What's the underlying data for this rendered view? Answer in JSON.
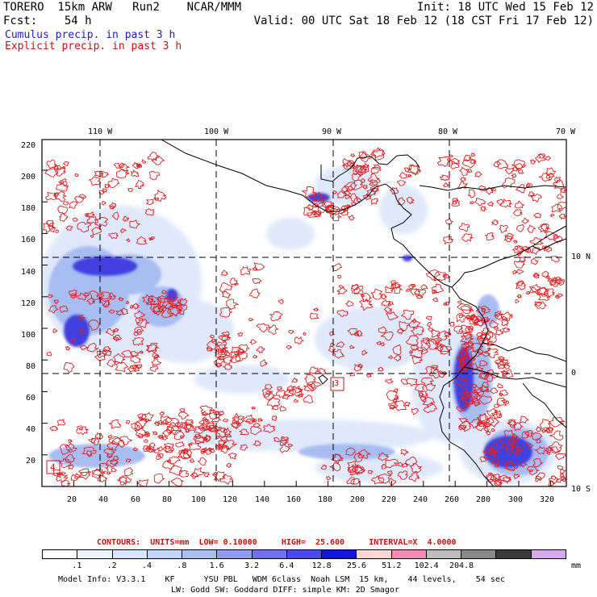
{
  "header": {
    "model": "TORERO  15km ARW",
    "run": "Run2",
    "org": "NCAR/MMM",
    "init": "Init: 18 UTC Wed 15 Feb 12",
    "fcst_label": "Fcst:",
    "fcst_value": "54 h",
    "valid": "Valid: 00 UTC Sat 18 Feb 12 (18 CST Fri 17 Feb 12)",
    "cumulus": "Cumulus precip. in past 3 h",
    "explicit": "Explicit precip. in past 3 h"
  },
  "colors": {
    "cumulus_text": "#2020c0",
    "explicit_text": "#d01010",
    "contour": "#e02020",
    "grid": "#000000",
    "coast": "#000000"
  },
  "map": {
    "top_lon_labels": [
      "110 W",
      "100 W",
      "90 W",
      "80 W",
      "70 W"
    ],
    "right_lat_labels": [
      "10 N",
      "0",
      "10 S"
    ],
    "left_y_ticks": [
      "220",
      "200",
      "180",
      "160",
      "140",
      "120",
      "100",
      "80",
      "60",
      "40",
      "20"
    ],
    "bottom_x_ticks": [
      "20",
      "40",
      "60",
      "80",
      "100",
      "120",
      "140",
      "160",
      "180",
      "200",
      "220",
      "240",
      "260",
      "280",
      "300",
      "320"
    ],
    "box_labels": [
      "4",
      "3"
    ]
  },
  "contours_line": {
    "label": "CONTOURS:",
    "units": "UNITS=mm",
    "low": "LOW= 0.10000",
    "high": "HIGH=  25.600",
    "interval": "INTERVAL=X  4.0000"
  },
  "colorbar": {
    "colors": [
      "#ffffff",
      "#eef4ff",
      "#d8e6ff",
      "#c2d6fb",
      "#a8c0f4",
      "#8f9ef0",
      "#6f72ea",
      "#4a4aea",
      "#1414e0",
      "#fad6d6",
      "#f28cb6",
      "#bdbdbd",
      "#8a8a8a",
      "#3a3a3a",
      "#d6a8f0"
    ],
    "labels": [
      ".1",
      ".2",
      ".4",
      ".8",
      "1.6",
      "3.2",
      "6.4",
      "12.8",
      "25.6",
      "51.2",
      "102.4",
      "204.8"
    ],
    "unit": "mm"
  },
  "footer": {
    "line1": "Model Info: V3.3.1    KF      YSU PBL   WDM 6class  Noah LSM  15 km,    44 levels,    54 sec",
    "line2": "LW: Godd SW: Goddard DIFF: simple KM: 2D Smagor"
  }
}
